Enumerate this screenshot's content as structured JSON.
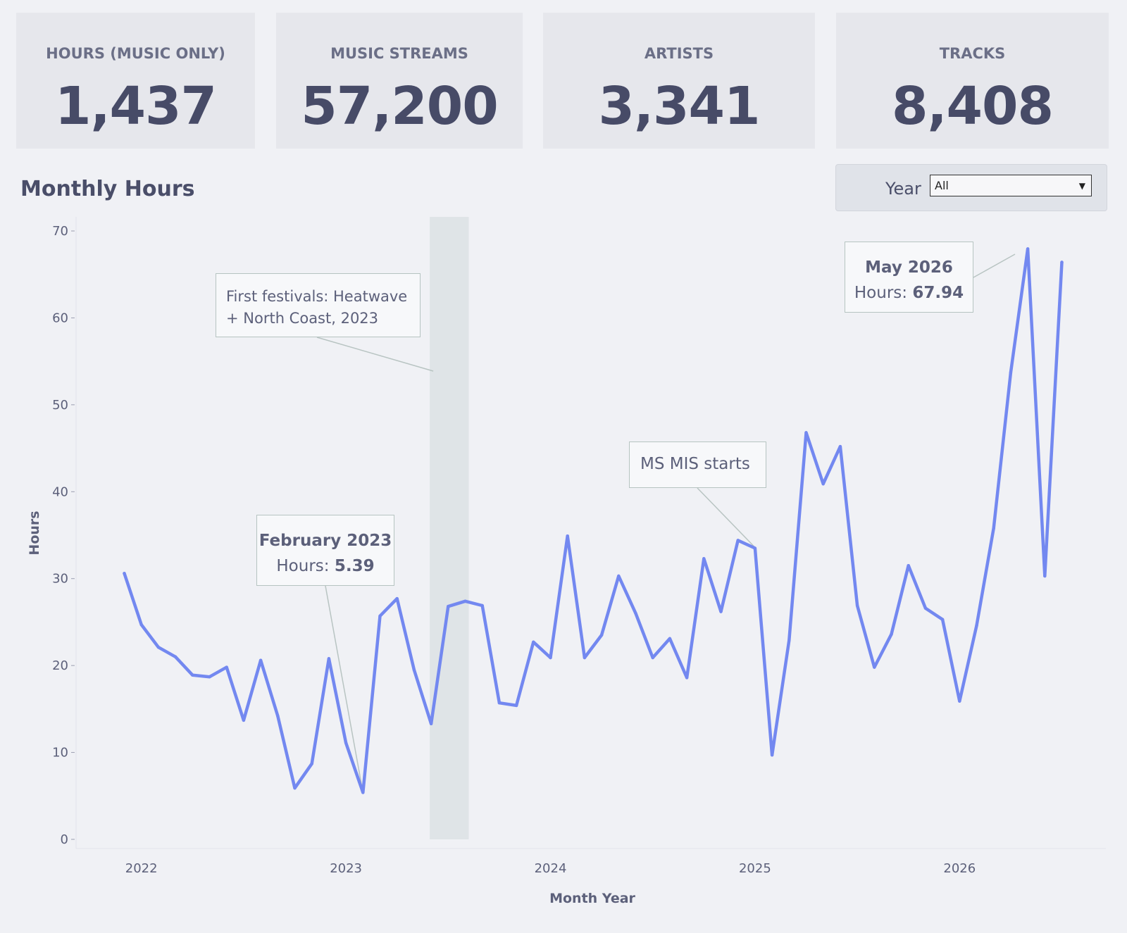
{
  "kpis": [
    {
      "label": "HOURS (MUSIC ONLY)",
      "value": "1,437"
    },
    {
      "label": "MUSIC STREAMS",
      "value": "57,200"
    },
    {
      "label": "ARTISTS",
      "value": "3,341"
    },
    {
      "label": "TRACKS",
      "value": "8,408"
    }
  ],
  "chart_title": "Monthly Hours",
  "year_filter": {
    "label": "Year",
    "value": "All"
  },
  "annotations": {
    "festival": "First festivals: Heatwave + North Coast, 2023",
    "mis": "MS MIS starts",
    "feb": {
      "title": "February 2023",
      "prefix": "Hours: ",
      "value": "5.39"
    },
    "may": {
      "title": "May 2026",
      "prefix": "Hours: ",
      "value": "67.94"
    }
  },
  "chart_data": {
    "type": "line",
    "title": "Monthly Hours",
    "xlabel": "Month Year",
    "ylabel": "Hours",
    "ylim": [
      0,
      70
    ],
    "yticks": [
      0,
      10,
      20,
      30,
      40,
      50,
      60,
      70
    ],
    "xticks": [
      "2022",
      "2023",
      "2024",
      "2025",
      "2026"
    ],
    "x_start": "2021-12",
    "x_end": "2026-07",
    "grid": false,
    "color": "#7388f0",
    "highlight_band": {
      "from": "2023-06",
      "to": "2023-08",
      "color": "#dfe4e7"
    },
    "series": [
      {
        "x": [
          "2021-12",
          "2022-01",
          "2022-02",
          "2022-03",
          "2022-04",
          "2022-05",
          "2022-06",
          "2022-07",
          "2022-08",
          "2022-09",
          "2022-10",
          "2022-11",
          "2022-12",
          "2023-01",
          "2023-02",
          "2023-03",
          "2023-04",
          "2023-05",
          "2023-06",
          "2023-07",
          "2023-08",
          "2023-09",
          "2023-10",
          "2023-11",
          "2023-12",
          "2024-01",
          "2024-02",
          "2024-03",
          "2024-04",
          "2024-05",
          "2024-06",
          "2024-07",
          "2024-08",
          "2024-09",
          "2024-10",
          "2024-11",
          "2024-12",
          "2025-01",
          "2025-02",
          "2025-03",
          "2025-04",
          "2025-05",
          "2025-06",
          "2025-07",
          "2025-08",
          "2025-09",
          "2025-10",
          "2025-11",
          "2025-12",
          "2026-01",
          "2026-02",
          "2026-03",
          "2026-04",
          "2026-05",
          "2026-06",
          "2026-07"
        ],
        "values": [
          30.6,
          24.7,
          22.1,
          21.0,
          18.9,
          18.7,
          19.8,
          13.7,
          20.6,
          14.2,
          5.9,
          8.7,
          20.8,
          11.1,
          5.39,
          25.7,
          27.7,
          19.5,
          13.3,
          26.8,
          27.4,
          26.9,
          15.7,
          15.4,
          22.7,
          20.9,
          34.9,
          20.9,
          23.5,
          30.3,
          26.0,
          20.9,
          23.1,
          18.6,
          32.3,
          26.2,
          34.4,
          33.5,
          9.7,
          22.9,
          46.8,
          40.9,
          45.2,
          26.9,
          19.8,
          23.6,
          31.5,
          26.6,
          25.3,
          15.9,
          24.6,
          35.8,
          53.7,
          67.94,
          30.3,
          66.4
        ]
      }
    ]
  }
}
